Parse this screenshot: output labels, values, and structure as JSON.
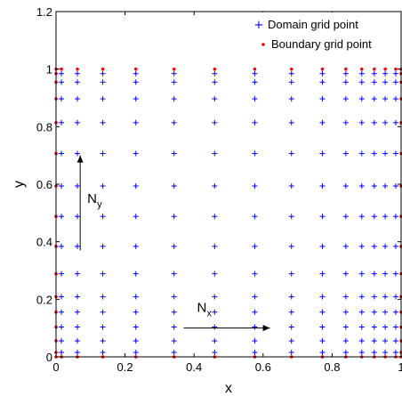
{
  "chart_data": {
    "type": "scatter",
    "title": "",
    "xlabel": "x",
    "ylabel": "y",
    "xlim": [
      0,
      1
    ],
    "ylim": [
      0,
      1.2
    ],
    "xticks": [
      "0",
      "0.2",
      "0.4",
      "0.6",
      "0.8",
      "1"
    ],
    "yticks": [
      "0",
      "0.2",
      "0.4",
      "0.6",
      "0.8",
      "1",
      "1.2"
    ],
    "x_tick_values": [
      0,
      0.2,
      0.4,
      0.6,
      0.8,
      1
    ],
    "y_tick_values": [
      0,
      0.2,
      0.4,
      0.6,
      0.8,
      1,
      1.2
    ],
    "grid": false,
    "legend_position": "top-right",
    "x_nodes": [
      0,
      0.0156,
      0.0618,
      0.1355,
      0.2313,
      0.342,
      0.4596,
      0.5758,
      0.6823,
      0.7718,
      0.8398,
      0.886,
      0.9222,
      0.9539,
      0.9844,
      1
    ],
    "y_nodes": [
      0,
      0.0154,
      0.0555,
      0.1036,
      0.1555,
      0.209,
      0.2888,
      0.384,
      0.488,
      0.5938,
      0.7067,
      0.8138,
      0.8967,
      0.9547,
      0.9844,
      1
    ],
    "series": [
      {
        "name": "Domain grid point",
        "marker": "+",
        "color": "#0000ff",
        "points": "interior nodes of x_nodes × y_nodes"
      },
      {
        "name": "Boundary grid point",
        "marker": "•",
        "color": "#ff0000",
        "points": "boundary nodes of x_nodes × y_nodes"
      }
    ],
    "annotations": [
      {
        "label": "N",
        "subscript": "y",
        "arrow_from": [
          0.07,
          0.37
        ],
        "arrow_to": [
          0.07,
          0.7
        ]
      },
      {
        "label": "N",
        "subscript": "x",
        "arrow_from": [
          0.37,
          0.1
        ],
        "arrow_to": [
          0.62,
          0.1
        ]
      }
    ]
  }
}
